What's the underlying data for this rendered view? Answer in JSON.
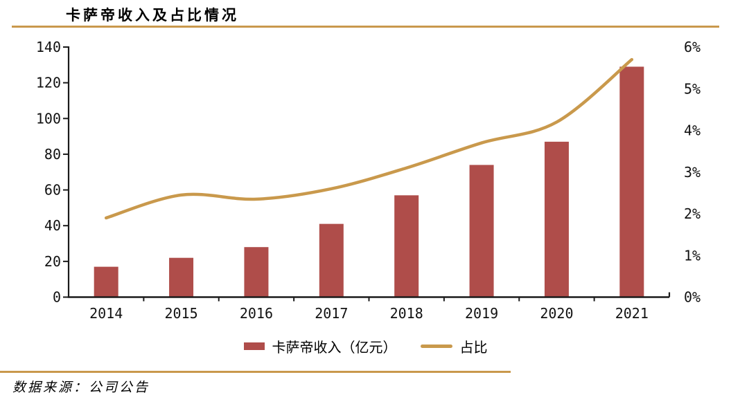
{
  "header": {
    "title": "卡萨帝收入及占比情况"
  },
  "legend": {
    "bar_label": "卡萨帝收入（亿元）",
    "line_label": "占比"
  },
  "source_note": "数据来源：公司公告",
  "colors": {
    "bar": "#AF4D4A",
    "line": "#C9994C",
    "rule": "#C9984C",
    "axis": "#1A1A1A"
  },
  "chart_data": {
    "type": "bar",
    "title": "卡萨帝收入及占比情况",
    "categories": [
      "2014",
      "2015",
      "2016",
      "2017",
      "2018",
      "2019",
      "2020",
      "2021"
    ],
    "series": [
      {
        "name": "卡萨帝收入（亿元）",
        "type": "bar",
        "axis": "left",
        "values": [
          17,
          22,
          28,
          41,
          57,
          74,
          87,
          129
        ]
      },
      {
        "name": "占比",
        "type": "line",
        "axis": "right",
        "values": [
          1.9,
          2.45,
          2.35,
          2.6,
          3.1,
          3.7,
          4.2,
          5.7
        ]
      }
    ],
    "left_axis": {
      "min": 0,
      "max": 140,
      "step": 20,
      "labels": [
        "0",
        "20",
        "40",
        "60",
        "80",
        "100",
        "120",
        "140"
      ]
    },
    "right_axis": {
      "min": 0,
      "max": 6,
      "step": 1,
      "labels": [
        "0%",
        "1%",
        "2%",
        "3%",
        "4%",
        "5%",
        "6%"
      ]
    },
    "grid": "off",
    "legend_position": "bottom"
  }
}
